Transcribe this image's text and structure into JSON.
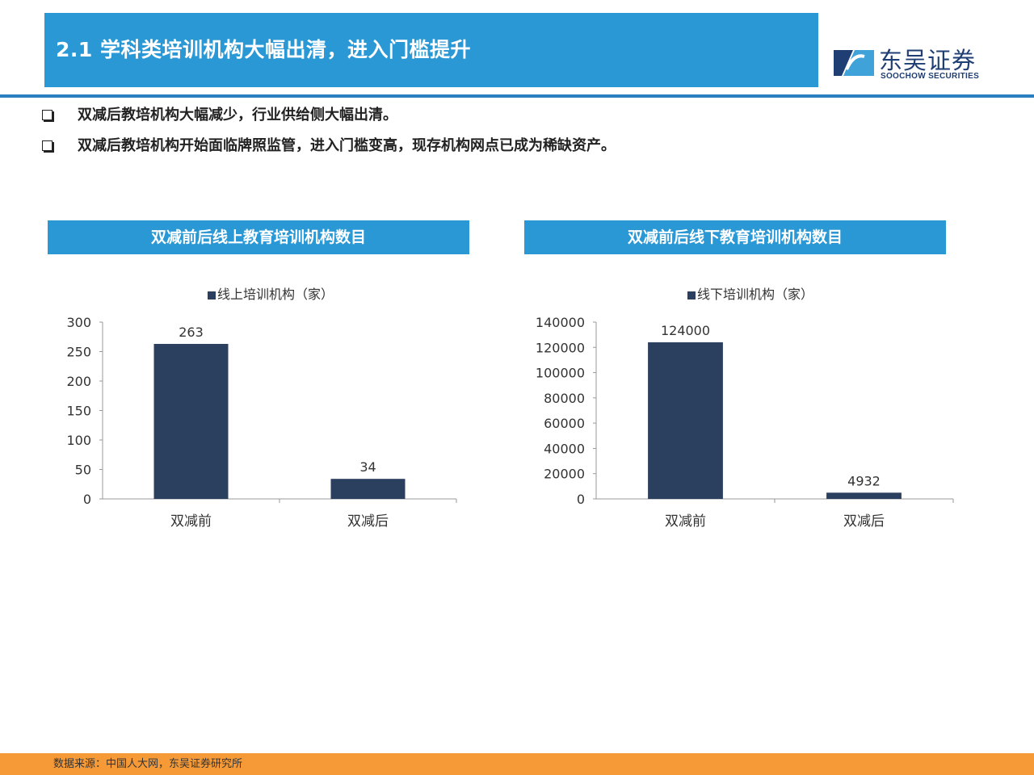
{
  "header": {
    "title": "2.1 学科类培训机构大幅出清，进入门槛提升",
    "logo_cn": "东吴证券",
    "logo_en": "SOOCHOW SECURITIES"
  },
  "bullets": [
    "双减后教培机构大幅减少，行业供给侧大幅出清。",
    "双减后教培机构开始面临牌照监管，进入门槛变高，现存机构网点已成为稀缺资产。"
  ],
  "panels": {
    "left_title": "双减前后线上教育培训机构数目",
    "right_title": "双减前后线下教育培训机构数目"
  },
  "colors": {
    "accent": "#2a98d5",
    "bar": "#2b3f5f",
    "footer": "#f59a36",
    "brand": "#1f3e73"
  },
  "chart_data": [
    {
      "type": "bar",
      "title": "双减前后线上教育培训机构数目",
      "legend": "线上培训机构（家）",
      "legend_position": "top",
      "categories": [
        "双减前",
        "双减后"
      ],
      "values": [
        263,
        34
      ],
      "data_labels": [
        "263",
        "34"
      ],
      "ylim": [
        0,
        300
      ],
      "yticks": [
        0,
        50,
        100,
        150,
        200,
        250,
        300
      ],
      "grid": false
    },
    {
      "type": "bar",
      "title": "双减前后线下教育培训机构数目",
      "legend": "线下培训机构（家）",
      "legend_position": "top",
      "categories": [
        "双减前",
        "双减后"
      ],
      "values": [
        124000,
        4932
      ],
      "data_labels": [
        "124000",
        "4932"
      ],
      "ylim": [
        0,
        140000
      ],
      "yticks": [
        0,
        20000,
        40000,
        60000,
        80000,
        100000,
        120000,
        140000
      ],
      "grid": false
    }
  ],
  "footer": {
    "source": "数据来源：中国人大网，东吴证券研究所"
  }
}
